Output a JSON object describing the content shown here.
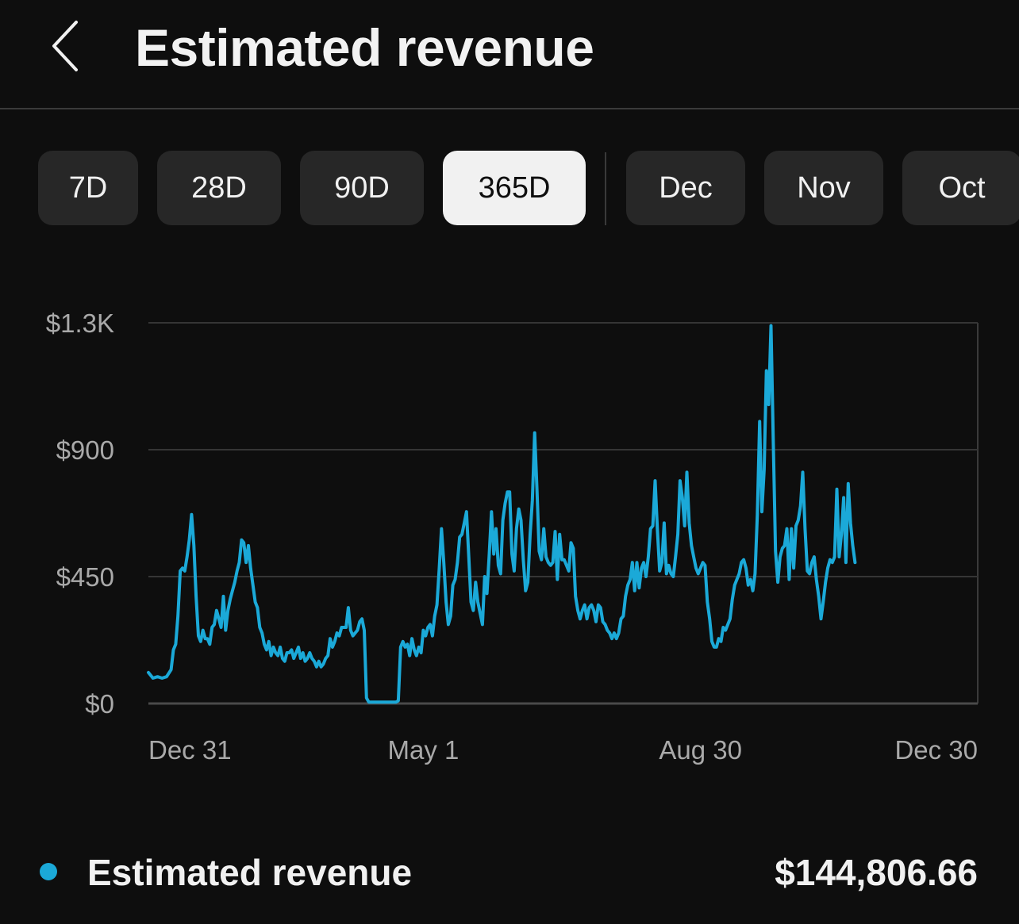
{
  "header": {
    "title": "Estimated revenue",
    "back_icon": "chevron-left-icon"
  },
  "range_chips": [
    {
      "label": "7D",
      "selected": false
    },
    {
      "label": "28D",
      "selected": false
    },
    {
      "label": "90D",
      "selected": false
    },
    {
      "label": "365D",
      "selected": true
    },
    {
      "label": "Dec",
      "selected": false
    },
    {
      "label": "Nov",
      "selected": false
    },
    {
      "label": "Oct",
      "selected": false
    }
  ],
  "chart_data": {
    "type": "line",
    "series_name": "Estimated revenue",
    "color": "#1ba9d8",
    "ylim": [
      0,
      1350
    ],
    "yticks": [
      {
        "value": 0,
        "label": "$0"
      },
      {
        "value": 450,
        "label": "$450"
      },
      {
        "value": 900,
        "label": "$900"
      },
      {
        "value": 1350,
        "label": "$1.3K"
      }
    ],
    "xlim": [
      0,
      365
    ],
    "xticks": [
      {
        "day": 0,
        "label": "Dec 31"
      },
      {
        "day": 121,
        "label": "May 1"
      },
      {
        "day": 243,
        "label": "Aug 30"
      },
      {
        "day": 365,
        "label": "Dec 30"
      }
    ],
    "grid": true,
    "points": [
      [
        0,
        110
      ],
      [
        2,
        90
      ],
      [
        4,
        95
      ],
      [
        6,
        90
      ],
      [
        8,
        95
      ],
      [
        10,
        120
      ],
      [
        11,
        190
      ],
      [
        12,
        210
      ],
      [
        13,
        310
      ],
      [
        14,
        470
      ],
      [
        15,
        480
      ],
      [
        16,
        470
      ],
      [
        17,
        520
      ],
      [
        18,
        580
      ],
      [
        19,
        670
      ],
      [
        20,
        560
      ],
      [
        21,
        380
      ],
      [
        22,
        240
      ],
      [
        23,
        220
      ],
      [
        24,
        260
      ],
      [
        25,
        230
      ],
      [
        26,
        230
      ],
      [
        27,
        210
      ],
      [
        28,
        270
      ],
      [
        29,
        280
      ],
      [
        30,
        330
      ],
      [
        31,
        300
      ],
      [
        32,
        270
      ],
      [
        33,
        380
      ],
      [
        34,
        260
      ],
      [
        35,
        330
      ],
      [
        36,
        370
      ],
      [
        37,
        400
      ],
      [
        38,
        430
      ],
      [
        39,
        470
      ],
      [
        40,
        500
      ],
      [
        41,
        580
      ],
      [
        42,
        570
      ],
      [
        43,
        500
      ],
      [
        44,
        560
      ],
      [
        45,
        480
      ],
      [
        46,
        420
      ],
      [
        47,
        360
      ],
      [
        48,
        340
      ],
      [
        49,
        270
      ],
      [
        50,
        250
      ],
      [
        51,
        210
      ],
      [
        52,
        190
      ],
      [
        53,
        220
      ],
      [
        54,
        170
      ],
      [
        55,
        200
      ],
      [
        56,
        180
      ],
      [
        57,
        170
      ],
      [
        58,
        200
      ],
      [
        59,
        160
      ],
      [
        60,
        150
      ],
      [
        61,
        180
      ],
      [
        62,
        180
      ],
      [
        63,
        190
      ],
      [
        64,
        160
      ],
      [
        65,
        180
      ],
      [
        66,
        200
      ],
      [
        67,
        160
      ],
      [
        68,
        180
      ],
      [
        69,
        150
      ],
      [
        70,
        160
      ],
      [
        71,
        180
      ],
      [
        72,
        160
      ],
      [
        73,
        150
      ],
      [
        74,
        130
      ],
      [
        75,
        150
      ],
      [
        76,
        130
      ],
      [
        77,
        140
      ],
      [
        78,
        160
      ],
      [
        79,
        170
      ],
      [
        80,
        230
      ],
      [
        81,
        200
      ],
      [
        82,
        220
      ],
      [
        83,
        250
      ],
      [
        84,
        240
      ],
      [
        85,
        270
      ],
      [
        86,
        270
      ],
      [
        87,
        270
      ],
      [
        88,
        340
      ],
      [
        89,
        260
      ],
      [
        90,
        240
      ],
      [
        91,
        250
      ],
      [
        92,
        260
      ],
      [
        93,
        290
      ],
      [
        94,
        300
      ],
      [
        95,
        260
      ],
      [
        96,
        20
      ],
      [
        97,
        5
      ],
      [
        98,
        5
      ],
      [
        99,
        5
      ],
      [
        100,
        5
      ],
      [
        101,
        5
      ],
      [
        102,
        5
      ],
      [
        103,
        5
      ],
      [
        104,
        5
      ],
      [
        105,
        5
      ],
      [
        106,
        5
      ],
      [
        107,
        5
      ],
      [
        108,
        5
      ],
      [
        109,
        5
      ],
      [
        110,
        10
      ],
      [
        111,
        200
      ],
      [
        112,
        220
      ],
      [
        113,
        200
      ],
      [
        114,
        210
      ],
      [
        115,
        170
      ],
      [
        116,
        230
      ],
      [
        117,
        190
      ],
      [
        118,
        170
      ],
      [
        119,
        200
      ],
      [
        120,
        180
      ],
      [
        121,
        260
      ],
      [
        122,
        240
      ],
      [
        123,
        270
      ],
      [
        124,
        280
      ],
      [
        125,
        240
      ],
      [
        126,
        310
      ],
      [
        127,
        350
      ],
      [
        128,
        480
      ],
      [
        129,
        620
      ],
      [
        130,
        500
      ],
      [
        131,
        360
      ],
      [
        132,
        280
      ],
      [
        133,
        310
      ],
      [
        134,
        420
      ],
      [
        135,
        440
      ],
      [
        136,
        500
      ],
      [
        137,
        590
      ],
      [
        138,
        600
      ],
      [
        139,
        640
      ],
      [
        140,
        680
      ],
      [
        141,
        520
      ],
      [
        142,
        360
      ],
      [
        143,
        330
      ],
      [
        144,
        430
      ],
      [
        145,
        360
      ],
      [
        146,
        320
      ],
      [
        147,
        280
      ],
      [
        148,
        450
      ],
      [
        149,
        390
      ],
      [
        150,
        530
      ],
      [
        151,
        680
      ],
      [
        152,
        530
      ],
      [
        153,
        620
      ],
      [
        154,
        490
      ],
      [
        155,
        460
      ],
      [
        156,
        650
      ],
      [
        157,
        710
      ],
      [
        158,
        750
      ],
      [
        159,
        750
      ],
      [
        160,
        530
      ],
      [
        161,
        470
      ],
      [
        162,
        620
      ],
      [
        163,
        690
      ],
      [
        164,
        650
      ],
      [
        165,
        510
      ],
      [
        166,
        400
      ],
      [
        167,
        430
      ],
      [
        168,
        600
      ],
      [
        169,
        720
      ],
      [
        170,
        960
      ],
      [
        171,
        760
      ],
      [
        172,
        540
      ],
      [
        173,
        510
      ],
      [
        174,
        620
      ],
      [
        175,
        520
      ],
      [
        176,
        500
      ],
      [
        177,
        490
      ],
      [
        178,
        500
      ],
      [
        179,
        610
      ],
      [
        180,
        440
      ],
      [
        181,
        600
      ],
      [
        182,
        510
      ],
      [
        183,
        510
      ],
      [
        184,
        490
      ],
      [
        185,
        470
      ],
      [
        186,
        570
      ],
      [
        187,
        550
      ],
      [
        188,
        380
      ],
      [
        189,
        330
      ],
      [
        190,
        300
      ],
      [
        191,
        330
      ],
      [
        192,
        350
      ],
      [
        193,
        300
      ],
      [
        194,
        340
      ],
      [
        195,
        350
      ],
      [
        196,
        330
      ],
      [
        197,
        290
      ],
      [
        198,
        350
      ],
      [
        199,
        340
      ],
      [
        200,
        290
      ],
      [
        201,
        280
      ],
      [
        202,
        260
      ],
      [
        203,
        250
      ],
      [
        204,
        230
      ],
      [
        205,
        250
      ],
      [
        206,
        230
      ],
      [
        207,
        250
      ],
      [
        208,
        300
      ],
      [
        209,
        310
      ],
      [
        210,
        380
      ],
      [
        211,
        420
      ],
      [
        212,
        440
      ],
      [
        213,
        500
      ],
      [
        214,
        400
      ],
      [
        215,
        500
      ],
      [
        216,
        410
      ],
      [
        217,
        480
      ],
      [
        218,
        500
      ],
      [
        219,
        450
      ],
      [
        220,
        520
      ],
      [
        221,
        620
      ],
      [
        222,
        630
      ],
      [
        223,
        790
      ],
      [
        224,
        620
      ],
      [
        225,
        470
      ],
      [
        226,
        500
      ],
      [
        227,
        640
      ],
      [
        228,
        460
      ],
      [
        229,
        490
      ],
      [
        230,
        460
      ],
      [
        231,
        450
      ],
      [
        232,
        520
      ],
      [
        233,
        600
      ],
      [
        234,
        790
      ],
      [
        235,
        730
      ],
      [
        236,
        630
      ],
      [
        237,
        820
      ],
      [
        238,
        640
      ],
      [
        239,
        560
      ],
      [
        240,
        520
      ],
      [
        241,
        480
      ],
      [
        242,
        460
      ],
      [
        243,
        480
      ],
      [
        244,
        500
      ],
      [
        245,
        490
      ],
      [
        246,
        360
      ],
      [
        247,
        300
      ],
      [
        248,
        220
      ],
      [
        249,
        200
      ],
      [
        250,
        200
      ],
      [
        251,
        230
      ],
      [
        252,
        220
      ],
      [
        253,
        270
      ],
      [
        254,
        260
      ],
      [
        255,
        280
      ],
      [
        256,
        300
      ],
      [
        257,
        370
      ],
      [
        258,
        420
      ],
      [
        259,
        440
      ],
      [
        260,
        460
      ],
      [
        261,
        500
      ],
      [
        262,
        510
      ],
      [
        263,
        480
      ],
      [
        264,
        420
      ],
      [
        265,
        440
      ],
      [
        266,
        400
      ],
      [
        267,
        460
      ],
      [
        268,
        670
      ],
      [
        269,
        1000
      ],
      [
        270,
        680
      ],
      [
        271,
        830
      ],
      [
        272,
        1180
      ],
      [
        273,
        1060
      ],
      [
        274,
        1340
      ],
      [
        275,
        940
      ],
      [
        276,
        540
      ],
      [
        277,
        430
      ],
      [
        278,
        520
      ],
      [
        279,
        550
      ],
      [
        280,
        560
      ],
      [
        281,
        620
      ],
      [
        282,
        440
      ],
      [
        283,
        620
      ],
      [
        284,
        480
      ],
      [
        285,
        630
      ],
      [
        286,
        650
      ],
      [
        287,
        700
      ],
      [
        288,
        820
      ],
      [
        289,
        620
      ],
      [
        290,
        470
      ],
      [
        291,
        460
      ],
      [
        292,
        500
      ],
      [
        293,
        520
      ],
      [
        294,
        440
      ],
      [
        295,
        380
      ],
      [
        296,
        300
      ],
      [
        297,
        360
      ],
      [
        298,
        430
      ],
      [
        299,
        480
      ],
      [
        300,
        510
      ],
      [
        301,
        500
      ],
      [
        302,
        520
      ],
      [
        303,
        760
      ],
      [
        304,
        520
      ],
      [
        305,
        600
      ],
      [
        306,
        730
      ],
      [
        307,
        500
      ],
      [
        308,
        780
      ],
      [
        309,
        640
      ],
      [
        310,
        560
      ],
      [
        311,
        500
      ]
    ]
  },
  "legend": {
    "label": "Estimated revenue",
    "total": "$144,806.66",
    "color": "#1ba9d8"
  }
}
